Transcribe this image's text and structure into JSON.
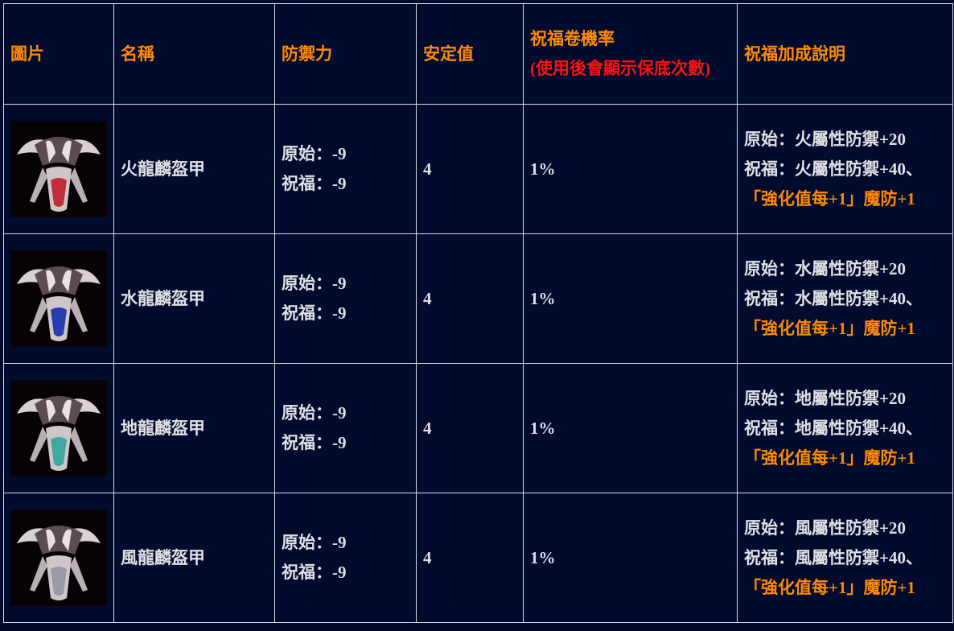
{
  "headers": {
    "image": "圖片",
    "name": "名稱",
    "defense": "防禦力",
    "safety": "安定值",
    "bless_rate_line1": "祝福卷機率",
    "bless_rate_line2": "(使用後會顯示保底次數)",
    "bless_bonus": "祝福加成說明"
  },
  "colors": {
    "header": "#ff8a00",
    "header_note": "#ff1010",
    "text": "#e0e0e4",
    "highlight": "#ff8a00",
    "background": "#000b2e"
  },
  "rows": [
    {
      "name": "火龍麟盔甲",
      "def_orig": "原始：-9",
      "def_bless": "祝福：-9",
      "safety": "4",
      "rate": "1%",
      "bonus_orig": "原始：火屬性防禦+20",
      "bonus_bless": "祝福：火屬性防禦+40、",
      "bonus_extra": "「強化值每+1」魔防+1",
      "tint": "#c0303c"
    },
    {
      "name": "水龍麟盔甲",
      "def_orig": "原始：-9",
      "def_bless": "祝福：-9",
      "safety": "4",
      "rate": "1%",
      "bonus_orig": "原始：水屬性防禦+20",
      "bonus_bless": "祝福：水屬性防禦+40、",
      "bonus_extra": "「強化值每+1」魔防+1",
      "tint": "#2a3cb0"
    },
    {
      "name": "地龍麟盔甲",
      "def_orig": "原始：-9",
      "def_bless": "祝福：-9",
      "safety": "4",
      "rate": "1%",
      "bonus_orig": "原始：地屬性防禦+20",
      "bonus_bless": "祝福：地屬性防禦+40、",
      "bonus_extra": "「強化值每+1」魔防+1",
      "tint": "#40a8a0"
    },
    {
      "name": "風龍麟盔甲",
      "def_orig": "原始：-9",
      "def_bless": "祝福：-9",
      "safety": "4",
      "rate": "1%",
      "bonus_orig": "原始：風屬性防禦+20",
      "bonus_bless": "祝福：風屬性防禦+40、",
      "bonus_extra": "「強化值每+1」魔防+1",
      "tint": "#9a9aa8"
    }
  ]
}
